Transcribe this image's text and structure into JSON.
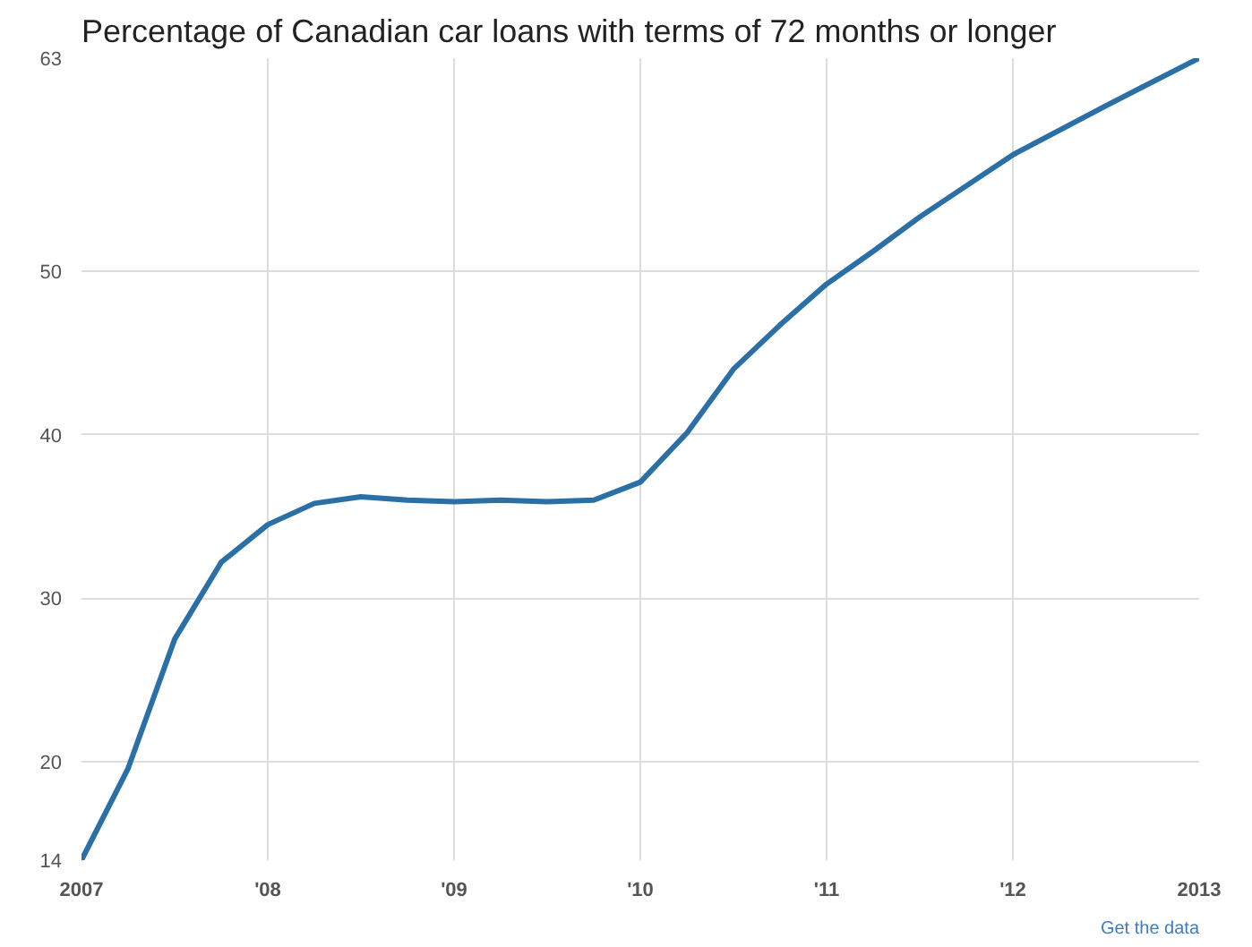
{
  "chart_data": {
    "type": "line",
    "title": "Percentage of Canadian car loans with terms of 72 months or longer",
    "x": [
      2007,
      2007.25,
      2007.5,
      2007.75,
      2008,
      2008.25,
      2008.5,
      2008.75,
      2009,
      2009.25,
      2009.5,
      2009.75,
      2010,
      2010.25,
      2010.5,
      2010.75,
      2011,
      2011.25,
      2011.5,
      2011.75,
      2012,
      2012.5,
      2013
    ],
    "series": [
      {
        "color": "#2a6fa6",
        "values": [
          14,
          19.6,
          27.5,
          32.2,
          34.5,
          35.8,
          36.2,
          36,
          35.9,
          36,
          35.9,
          36,
          37.1,
          40.1,
          44,
          46.7,
          49.2,
          51.2,
          53.3,
          55.2,
          57.1,
          60.1,
          63
        ]
      }
    ],
    "xlim": [
      2007,
      2013
    ],
    "xticks": [
      {
        "value": 2007,
        "label": "2007"
      },
      {
        "value": 2008,
        "label": "'08"
      },
      {
        "value": 2009,
        "label": "'09"
      },
      {
        "value": 2010,
        "label": "'10"
      },
      {
        "value": 2011,
        "label": "'11"
      },
      {
        "value": 2012,
        "label": "'12"
      },
      {
        "value": 2013,
        "label": "2013"
      }
    ],
    "ylim": [
      14,
      63
    ],
    "yticks": [
      14,
      20,
      30,
      40,
      50,
      63
    ],
    "grid": true,
    "marker": "none",
    "line_style": "solid",
    "annotations": [
      "Get the data"
    ]
  }
}
